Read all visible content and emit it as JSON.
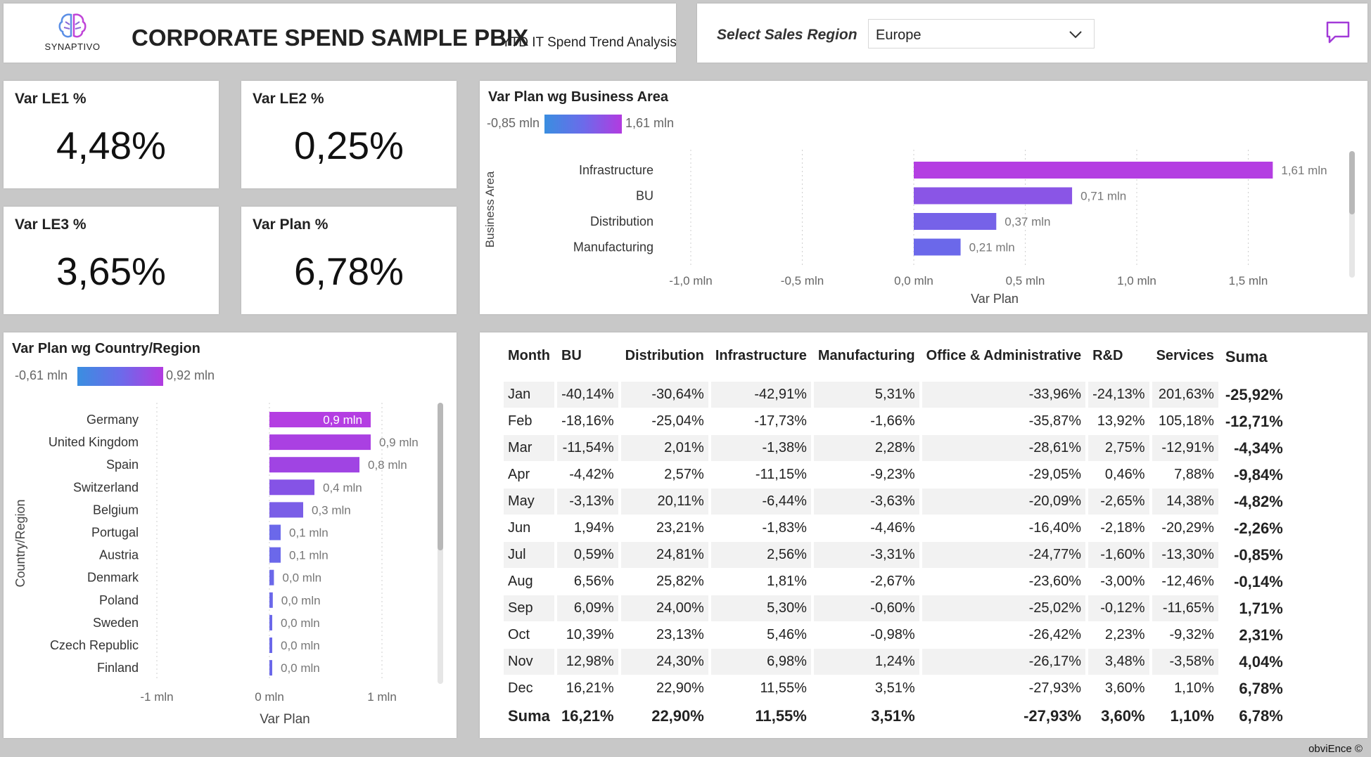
{
  "header": {
    "logo_text": "SYNAPTIVO",
    "title": "CORPORATE SPEND SAMPLE PBIX",
    "subtitle": "YTD IT Spend Trend Analysis"
  },
  "region_selector": {
    "label": "Select Sales Region",
    "value": "Europe"
  },
  "kpis": [
    {
      "label": "Var LE1 %",
      "value": "4,48%"
    },
    {
      "label": "Var LE2 %",
      "value": "0,25%"
    },
    {
      "label": "Var LE3 %",
      "value": "3,65%"
    },
    {
      "label": "Var Plan %",
      "value": "6,78%"
    }
  ],
  "business_area_chart": {
    "title": "Var Plan wg Business Area",
    "legend_min": "-0,85 mln",
    "legend_max": "1,61 mln",
    "ylabel": "Business Area",
    "xlabel": "Var Plan",
    "ticks": [
      "-1,0 mln",
      "-0,5 mln",
      "0,0 mln",
      "0,5 mln",
      "1,0 mln",
      "1,5 mln"
    ]
  },
  "country_chart": {
    "title": "Var Plan wg Country/Region",
    "legend_min": "-0,61 mln",
    "legend_max": "0,92 mln",
    "ylabel": "Country/Region",
    "xlabel": "Var Plan",
    "ticks": [
      "-1 mln",
      "0 mln",
      "1 mln"
    ]
  },
  "chart_data": [
    {
      "type": "bar",
      "orientation": "horizontal",
      "title": "Var Plan wg Business Area",
      "xlabel": "Var Plan",
      "ylabel": "Business Area",
      "xlim": [
        -1.0,
        1.6
      ],
      "categories": [
        "Infrastructure",
        "BU",
        "Distribution",
        "Manufacturing"
      ],
      "values": [
        1.61,
        0.71,
        0.37,
        0.21
      ],
      "labels": [
        "1,61 mln",
        "0,71 mln",
        "0,37 mln",
        "0,21 mln"
      ],
      "colors": [
        "#b43ee2",
        "#8a55e6",
        "#7662e8",
        "#6b68ea"
      ]
    },
    {
      "type": "bar",
      "orientation": "horizontal",
      "title": "Var Plan wg Country/Region",
      "xlabel": "Var Plan",
      "ylabel": "Country/Region",
      "xlim": [
        -1.2,
        1.5
      ],
      "categories": [
        "Germany",
        "United Kingdom",
        "Spain",
        "Switzerland",
        "Belgium",
        "Portugal",
        "Austria",
        "Denmark",
        "Poland",
        "Sweden",
        "Czech Republic",
        "Finland"
      ],
      "values": [
        0.9,
        0.9,
        0.8,
        0.4,
        0.3,
        0.1,
        0.1,
        0.04,
        0.03,
        0.02,
        0.02,
        0.02
      ],
      "labels": [
        "0,9 mln",
        "0,9 mln",
        "0,8 mln",
        "0,4 mln",
        "0,3 mln",
        "0,1 mln",
        "0,1 mln",
        "0,0 mln",
        "0,0 mln",
        "0,0 mln",
        "0,0 mln",
        "0,0 mln"
      ],
      "colors": [
        "#b43ee2",
        "#aa40e2",
        "#a044e3",
        "#8553e6",
        "#7a5ee7",
        "#6b68ea",
        "#6b68ea",
        "#6b68ea",
        "#6b68ea",
        "#6b68ea",
        "#6b68ea",
        "#6b68ea"
      ]
    }
  ],
  "table": {
    "columns": [
      "Month",
      "BU",
      "Distribution",
      "Infrastructure",
      "Manufacturing",
      "Office & Administrative",
      "R&D",
      "Services",
      "Suma"
    ],
    "rows": [
      [
        "Jan",
        "-40,14%",
        "-30,64%",
        "-42,91%",
        "5,31%",
        "-33,96%",
        "-24,13%",
        "201,63%",
        "-25,92%"
      ],
      [
        "Feb",
        "-18,16%",
        "-25,04%",
        "-17,73%",
        "-1,66%",
        "-35,87%",
        "13,92%",
        "105,18%",
        "-12,71%"
      ],
      [
        "Mar",
        "-11,54%",
        "2,01%",
        "-1,38%",
        "2,28%",
        "-28,61%",
        "2,75%",
        "-12,91%",
        "-4,34%"
      ],
      [
        "Apr",
        "-4,42%",
        "2,57%",
        "-11,15%",
        "-9,23%",
        "-29,05%",
        "0,46%",
        "7,88%",
        "-9,84%"
      ],
      [
        "May",
        "-3,13%",
        "20,11%",
        "-6,44%",
        "-3,63%",
        "-20,09%",
        "-2,65%",
        "14,38%",
        "-4,82%"
      ],
      [
        "Jun",
        "1,94%",
        "23,21%",
        "-1,83%",
        "-4,46%",
        "-16,40%",
        "-2,18%",
        "-20,29%",
        "-2,26%"
      ],
      [
        "Jul",
        "0,59%",
        "24,81%",
        "2,56%",
        "-3,31%",
        "-24,77%",
        "-1,60%",
        "-13,30%",
        "-0,85%"
      ],
      [
        "Aug",
        "6,56%",
        "25,82%",
        "1,81%",
        "-2,67%",
        "-23,60%",
        "-3,00%",
        "-12,46%",
        "-0,14%"
      ],
      [
        "Sep",
        "6,09%",
        "24,00%",
        "5,30%",
        "-0,60%",
        "-25,02%",
        "-0,12%",
        "-11,65%",
        "1,71%"
      ],
      [
        "Oct",
        "10,39%",
        "23,13%",
        "5,46%",
        "-0,98%",
        "-26,42%",
        "2,23%",
        "-9,32%",
        "2,31%"
      ],
      [
        "Nov",
        "12,98%",
        "24,30%",
        "6,98%",
        "1,24%",
        "-26,17%",
        "3,48%",
        "-3,58%",
        "4,04%"
      ],
      [
        "Dec",
        "16,21%",
        "22,90%",
        "11,55%",
        "3,51%",
        "-27,93%",
        "3,60%",
        "1,10%",
        "6,78%"
      ]
    ],
    "total": [
      "Suma",
      "16,21%",
      "22,90%",
      "11,55%",
      "3,51%",
      "-27,93%",
      "3,60%",
      "1,10%",
      "6,78%"
    ]
  },
  "footer": "obviEnce ©",
  "colors": {
    "accent": "#b43ee2",
    "gradient_start": "#3a8ee0",
    "gradient_end": "#b23be0"
  }
}
